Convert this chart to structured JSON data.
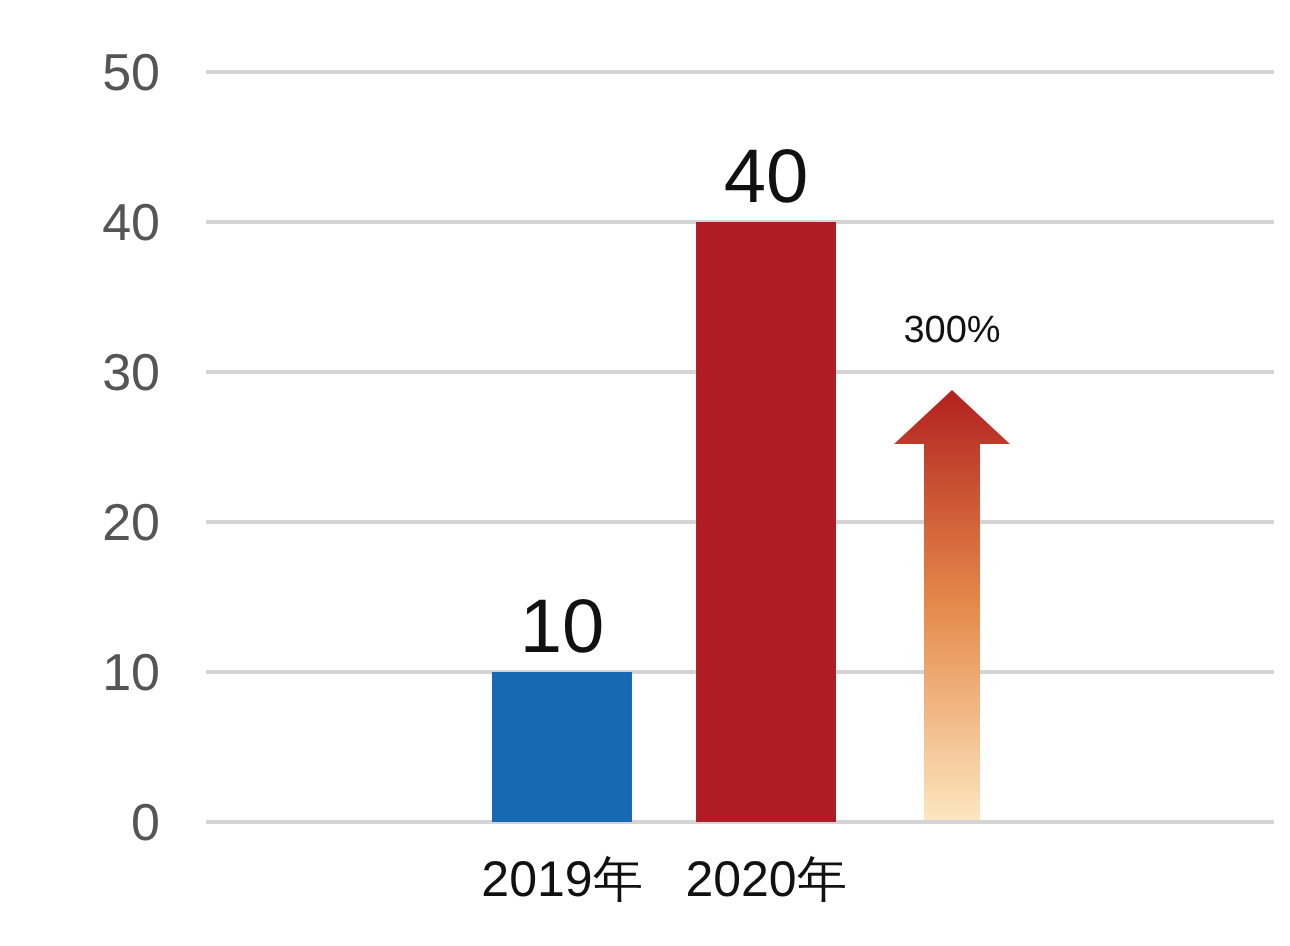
{
  "chart_data": {
    "type": "bar",
    "categories": [
      "2019年",
      "2020年"
    ],
    "values": [
      10,
      40
    ],
    "colors": [
      "#1769b3",
      "#b01c24"
    ],
    "ylim": [
      0,
      50
    ],
    "yticks": [
      0,
      10,
      20,
      30,
      40,
      50
    ],
    "grid": "y",
    "data_labels": true,
    "annotations": [
      "300%"
    ]
  }
}
